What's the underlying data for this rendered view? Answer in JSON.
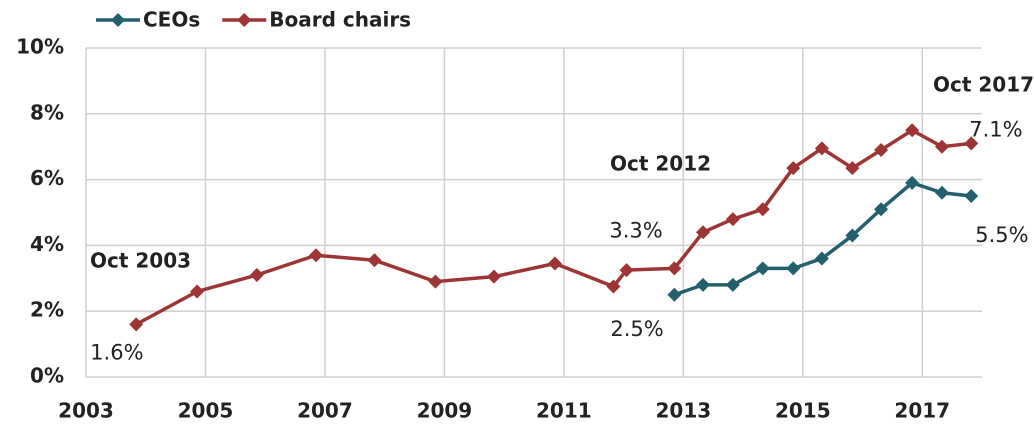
{
  "chart_data": {
    "type": "line",
    "xlim": [
      2003,
      2018
    ],
    "xticks": [
      2003,
      2005,
      2007,
      2009,
      2011,
      2013,
      2015,
      2017
    ],
    "ylim": [
      0,
      10
    ],
    "yticks": [
      {
        "value": 0,
        "label": "0%"
      },
      {
        "value": 2,
        "label": "2%"
      },
      {
        "value": 4,
        "label": "4%"
      },
      {
        "value": 6,
        "label": "6%"
      },
      {
        "value": 8,
        "label": "8%"
      },
      {
        "value": 10,
        "label": "10%"
      }
    ],
    "grid": true,
    "legend": "top-left",
    "annotations": [
      "Oct 2003",
      "Oct 2012",
      "Oct 2017"
    ],
    "series": [
      {
        "name": "CEOs",
        "color": "#235f6d",
        "x": [
          2012.85,
          2013.33,
          2013.83,
          2014.33,
          2014.84,
          2015.32,
          2015.83,
          2016.31,
          2016.83,
          2017.33,
          2017.82
        ],
        "values": [
          2.5,
          2.8,
          2.8,
          3.3,
          3.3,
          3.6,
          4.3,
          5.1,
          5.9,
          5.6,
          5.5
        ],
        "value_labels": [
          "2.5%",
          null,
          null,
          null,
          null,
          null,
          null,
          null,
          null,
          null,
          "5.5%"
        ]
      },
      {
        "name": "Board chairs",
        "color": "#9c3533",
        "x": [
          2003.84,
          2004.86,
          2005.86,
          2006.85,
          2007.83,
          2008.85,
          2009.83,
          2010.85,
          2011.83,
          2012.05,
          2012.85,
          2013.33,
          2013.83,
          2014.33,
          2014.84,
          2015.32,
          2015.83,
          2016.31,
          2016.83,
          2017.33,
          2017.82
        ],
        "values": [
          1.6,
          2.6,
          3.1,
          3.7,
          3.55,
          2.9,
          3.05,
          3.45,
          2.75,
          3.25,
          3.3,
          4.4,
          4.8,
          5.1,
          6.35,
          6.95,
          6.35,
          6.9,
          7.5,
          7.0,
          7.1
        ],
        "value_labels": [
          "1.6%",
          null,
          null,
          null,
          null,
          null,
          null,
          null,
          null,
          null,
          "3.3%",
          null,
          null,
          null,
          null,
          null,
          null,
          null,
          null,
          null,
          "7.1%"
        ]
      }
    ]
  }
}
